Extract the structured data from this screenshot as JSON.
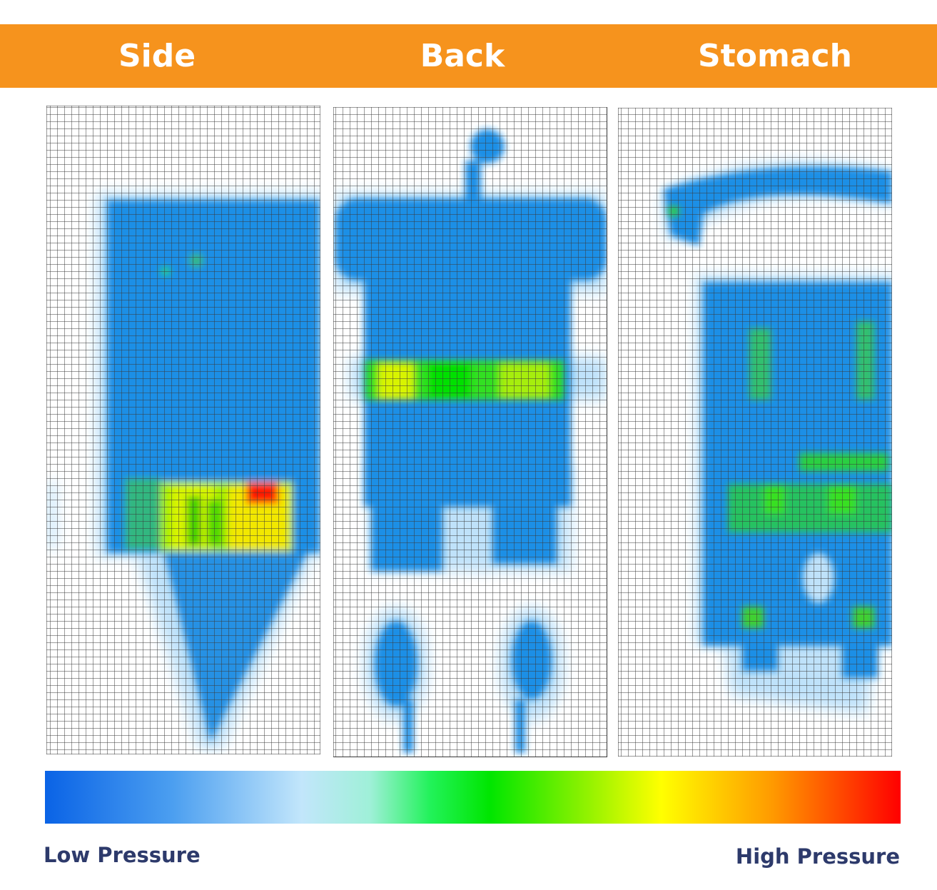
{
  "header": {
    "labels": [
      "Side",
      "Back",
      "Stomach"
    ]
  },
  "legend": {
    "low": "Low Pressure",
    "high": "High Pressure"
  }
}
